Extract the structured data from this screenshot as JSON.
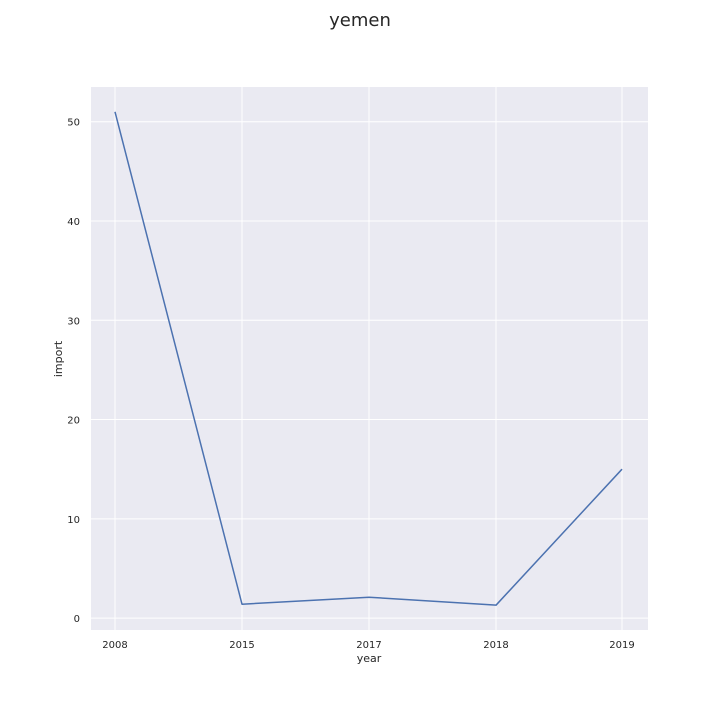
{
  "chart_data": {
    "type": "line",
    "title": "yemen",
    "xlabel": "year",
    "ylabel": "import",
    "categories": [
      "2008",
      "2015",
      "2017",
      "2018",
      "2019"
    ],
    "series": [
      {
        "values": [
          51.0,
          1.4,
          2.1,
          1.3,
          15.0
        ]
      }
    ],
    "ylim": [
      -1.2,
      53.5
    ],
    "yticks": [
      0,
      10,
      20,
      30,
      40,
      50
    ],
    "grid": true,
    "colors": {
      "plot_background": "#eaeaf2",
      "grid": "#ffffff",
      "line": "#4c72b0"
    }
  }
}
